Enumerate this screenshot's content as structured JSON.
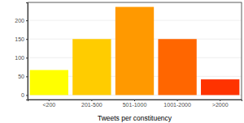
{
  "chart_data": {
    "type": "bar",
    "x_label": "Tweets per constituency",
    "categories": [
      "<200",
      "201-500",
      "501-1000",
      "1001-2000",
      ">2000"
    ],
    "values": [
      67,
      150,
      236,
      150,
      42
    ],
    "colors": [
      "#ffff00",
      "#ffcc00",
      "#ff9900",
      "#ff6600",
      "#ff3300"
    ],
    "ylim": [
      -12,
      248
    ],
    "yticks": [
      0,
      50,
      100,
      150,
      200
    ],
    "grid": true
  }
}
